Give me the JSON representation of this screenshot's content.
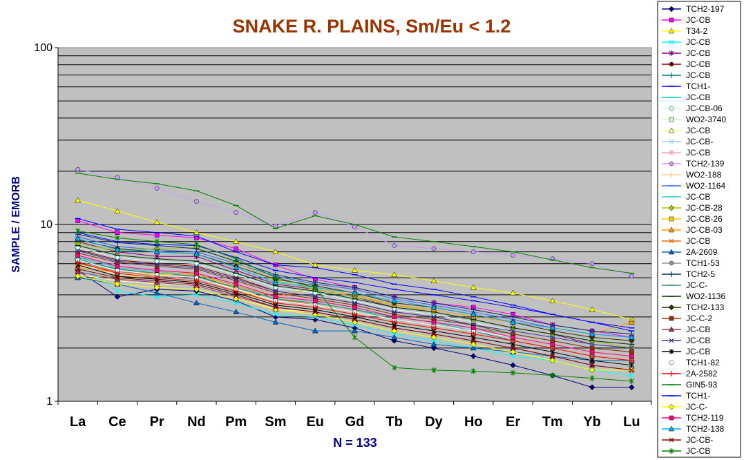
{
  "chart_data": {
    "type": "line",
    "title": "SNAKE R. PLAINS, Sm/Eu < 1.2",
    "ylabel": "SAMPLE / EMORB",
    "xlabel": "N = 133",
    "y_scale": "log",
    "ylim": [
      1,
      100
    ],
    "y_ticks": [
      "1",
      "10",
      "100"
    ],
    "grid": true,
    "legend_position": "right",
    "plot_background": "#c0c0c0",
    "categories": [
      "La",
      "Ce",
      "Pr",
      "Nd",
      "Pm",
      "Sm",
      "Eu",
      "Gd",
      "Tb",
      "Dy",
      "Ho",
      "Er",
      "Tm",
      "Yb",
      "Lu"
    ],
    "series": [
      {
        "name": "TCH2-197",
        "color": "#000080",
        "marker": "diamond",
        "values": [
          5.5,
          3.9,
          4.3,
          4.2,
          3.7,
          3.0,
          2.9,
          2.6,
          2.2,
          2.0,
          1.8,
          1.6,
          1.4,
          1.2,
          1.2
        ]
      },
      {
        "name": "JC-CB",
        "color": "#ff00ff",
        "marker": "square",
        "values": [
          10.5,
          9.0,
          8.7,
          8.4,
          7.3,
          5.9,
          4.9,
          4.4,
          3.9,
          3.6,
          3.4,
          3.1,
          2.7,
          2.5,
          2.3
        ]
      },
      {
        "name": "T34-2",
        "color": "#ffff00",
        "marker": "triangle",
        "values": [
          13.7,
          11.9,
          10.3,
          9.0,
          8.0,
          7.0,
          5.9,
          5.5,
          5.2,
          4.8,
          4.4,
          4.1,
          3.7,
          3.3,
          2.9
        ]
      },
      {
        "name": "JC-CB",
        "color": "#00ffff",
        "marker": "x",
        "values": [
          6.0,
          4.2,
          3.9,
          4.0,
          3.6,
          3.1,
          3.0,
          2.7,
          2.4,
          2.2,
          2.0,
          1.8,
          1.7,
          1.5,
          1.4
        ]
      },
      {
        "name": "JC-CB",
        "color": "#800080",
        "marker": "star",
        "values": [
          8.0,
          7.0,
          6.6,
          6.6,
          5.5,
          4.6,
          4.3,
          3.9,
          3.4,
          3.2,
          2.9,
          2.6,
          2.4,
          2.1,
          2.0
        ]
      },
      {
        "name": "JC-CB",
        "color": "#800000",
        "marker": "circle",
        "values": [
          7.2,
          6.3,
          6.0,
          5.8,
          5.0,
          4.2,
          3.9,
          3.6,
          3.2,
          3.0,
          2.7,
          2.4,
          2.2,
          2.0,
          1.9
        ]
      },
      {
        "name": "JC-CB",
        "color": "#008080",
        "marker": "plus",
        "values": [
          6.3,
          5.6,
          5.3,
          5.1,
          4.4,
          3.8,
          3.6,
          3.3,
          2.9,
          2.7,
          2.5,
          2.2,
          2.0,
          1.8,
          1.7
        ]
      },
      {
        "name": "TCH1-",
        "color": "#0000ff",
        "marker": "dash",
        "values": [
          9.0,
          8.0,
          7.7,
          7.6,
          6.5,
          5.5,
          5.0,
          4.7,
          4.3,
          4.0,
          3.7,
          3.4,
          3.1,
          2.8,
          2.6
        ]
      },
      {
        "name": "JC-CB",
        "color": "#00cccc",
        "marker": "dash",
        "values": [
          6.5,
          5.8,
          5.5,
          5.3,
          4.6,
          3.9,
          3.7,
          3.4,
          3.0,
          2.8,
          2.5,
          2.3,
          2.1,
          1.9,
          1.8
        ]
      },
      {
        "name": "JC-CB-06",
        "color": "#ccffff",
        "marker": "diamond",
        "values": [
          7.4,
          6.5,
          6.2,
          6.0,
          5.2,
          4.4,
          4.1,
          3.7,
          3.3,
          3.1,
          2.8,
          2.5,
          2.3,
          2.1,
          2.0
        ]
      },
      {
        "name": "WO2-3740",
        "color": "#ccffcc",
        "marker": "square",
        "values": [
          6.0,
          5.2,
          5.0,
          4.8,
          4.2,
          3.6,
          3.4,
          3.1,
          2.8,
          2.6,
          2.4,
          2.2,
          2.0,
          1.8,
          1.7
        ]
      },
      {
        "name": "JC-CB",
        "color": "#ffff99",
        "marker": "triangle",
        "values": [
          5.2,
          4.8,
          4.6,
          4.5,
          3.9,
          3.3,
          3.2,
          2.9,
          2.6,
          2.4,
          2.2,
          2.0,
          1.8,
          1.7,
          1.6
        ]
      },
      {
        "name": "JC-CB-",
        "color": "#99ccff",
        "marker": "x",
        "values": [
          7.0,
          6.0,
          5.7,
          5.5,
          4.8,
          4.1,
          3.8,
          3.5,
          3.1,
          2.9,
          2.6,
          2.4,
          2.2,
          2.0,
          1.9
        ]
      },
      {
        "name": "JC-CB",
        "color": "#ff99cc",
        "marker": "star",
        "values": [
          6.8,
          5.9,
          5.6,
          5.4,
          4.7,
          4.0,
          3.7,
          3.4,
          3.0,
          2.8,
          2.6,
          2.3,
          2.1,
          1.9,
          1.8
        ]
      },
      {
        "name": "TCH2-139",
        "color": "#cc99ff",
        "marker": "circle",
        "values": [
          20.5,
          18.5,
          16.0,
          13.5,
          11.7,
          9.8,
          11.7,
          9.7,
          7.6,
          7.3,
          7.0,
          6.7,
          6.4,
          6.0,
          5.1
        ]
      },
      {
        "name": "WO2-188",
        "color": "#ffcc99",
        "marker": "plus",
        "values": [
          5.8,
          5.3,
          5.1,
          4.9,
          4.3,
          3.7,
          3.5,
          3.2,
          2.9,
          2.7,
          2.5,
          2.3,
          2.1,
          1.9,
          1.8
        ]
      },
      {
        "name": "WO2-1164",
        "color": "#3366ff",
        "marker": "dash",
        "values": [
          8.5,
          7.5,
          7.2,
          7.0,
          6.0,
          5.1,
          4.6,
          4.3,
          3.8,
          3.5,
          3.2,
          2.9,
          2.6,
          2.4,
          2.3
        ]
      },
      {
        "name": "JC-CB",
        "color": "#33cccc",
        "marker": "dash",
        "values": [
          6.6,
          5.7,
          5.4,
          5.2,
          4.5,
          3.8,
          3.6,
          3.3,
          2.9,
          2.7,
          2.5,
          2.3,
          2.1,
          1.9,
          1.8
        ]
      },
      {
        "name": "JC-CB-28",
        "color": "#99cc00",
        "marker": "diamond",
        "values": [
          7.8,
          7.1,
          7.3,
          7.4,
          6.1,
          4.8,
          4.3,
          3.9,
          3.5,
          3.2,
          2.9,
          2.6,
          2.4,
          2.2,
          2.0
        ]
      },
      {
        "name": "JC-CB-26",
        "color": "#ffcc00",
        "marker": "square",
        "values": [
          5.6,
          5.0,
          5.2,
          5.3,
          4.3,
          3.6,
          3.4,
          3.1,
          2.8,
          2.6,
          2.4,
          2.2,
          2.0,
          1.8,
          1.7
        ]
      },
      {
        "name": "JC-CB-03",
        "color": "#ff9900",
        "marker": "triangle",
        "values": [
          5.7,
          5.4,
          5.3,
          5.2,
          4.5,
          3.9,
          4.4,
          4.0,
          3.5,
          3.3,
          3.0,
          2.8,
          2.6,
          2.4,
          2.8
        ]
      },
      {
        "name": "JC-CB",
        "color": "#ff6600",
        "marker": "x",
        "values": [
          6.0,
          5.4,
          5.2,
          5.0,
          4.4,
          3.8,
          3.5,
          3.2,
          2.9,
          2.7,
          2.5,
          2.3,
          2.1,
          1.9,
          1.8
        ]
      },
      {
        "name": "2A-2609",
        "color": "#0066cc",
        "marker": "triangle",
        "values": [
          5.0,
          4.6,
          4.1,
          3.6,
          3.2,
          2.8,
          2.5,
          2.5,
          2.3,
          2.1,
          2.0,
          1.9,
          1.8,
          1.7,
          1.7
        ]
      },
      {
        "name": "TCH1-53",
        "color": "#969696",
        "marker": "circle",
        "values": [
          6.2,
          5.4,
          5.1,
          4.9,
          4.2,
          3.6,
          3.4,
          3.1,
          2.8,
          2.6,
          2.4,
          2.2,
          2.0,
          1.8,
          1.7
        ]
      },
      {
        "name": "TCH2-5",
        "color": "#003366",
        "marker": "plus",
        "values": [
          8.8,
          7.9,
          7.6,
          7.3,
          6.2,
          5.2,
          4.7,
          4.4,
          3.9,
          3.6,
          3.3,
          3.0,
          2.7,
          2.5,
          2.4
        ]
      },
      {
        "name": "JC-C-",
        "color": "#339966",
        "marker": "dash",
        "values": [
          6.4,
          5.5,
          5.2,
          5.0,
          4.4,
          3.8,
          3.6,
          3.3,
          3.0,
          2.8,
          2.6,
          2.4,
          2.2,
          2.0,
          1.9
        ]
      },
      {
        "name": "WO2-1136",
        "color": "#003300",
        "marker": "dash",
        "values": [
          7.6,
          6.7,
          6.4,
          6.2,
          5.3,
          4.5,
          4.2,
          3.8,
          3.4,
          3.2,
          2.9,
          2.6,
          2.4,
          2.2,
          2.1
        ]
      },
      {
        "name": "TCH2-133",
        "color": "#333300",
        "marker": "diamond",
        "values": [
          8.2,
          7.3,
          7.0,
          6.8,
          5.8,
          4.9,
          4.5,
          4.1,
          3.6,
          3.4,
          3.1,
          2.8,
          2.5,
          2.3,
          2.2
        ]
      },
      {
        "name": "JC-C-2",
        "color": "#993300",
        "marker": "square",
        "values": [
          6.9,
          6.1,
          5.8,
          5.6,
          4.8,
          4.1,
          3.8,
          3.5,
          3.1,
          2.9,
          2.7,
          2.4,
          2.2,
          2.0,
          1.9
        ]
      },
      {
        "name": "JC-CB",
        "color": "#993366",
        "marker": "triangle",
        "values": [
          5.4,
          4.9,
          4.7,
          4.5,
          3.9,
          3.4,
          3.2,
          2.9,
          2.6,
          2.4,
          2.2,
          2.0,
          1.8,
          1.6,
          1.5
        ]
      },
      {
        "name": "JC-CB",
        "color": "#333399",
        "marker": "x",
        "values": [
          7.1,
          6.2,
          5.9,
          5.7,
          4.9,
          4.2,
          3.9,
          3.6,
          3.2,
          3.0,
          2.7,
          2.5,
          2.3,
          2.1,
          2.0
        ]
      },
      {
        "name": "JC-CB",
        "color": "#000000",
        "marker": "star",
        "values": [
          5.9,
          5.1,
          4.9,
          4.7,
          4.1,
          3.5,
          3.3,
          3.0,
          2.7,
          2.5,
          2.3,
          2.1,
          1.9,
          1.7,
          1.6
        ]
      },
      {
        "name": "TCH1-82",
        "color": "#ffffff",
        "marker": "circle",
        "values": [
          6.3,
          5.5,
          5.2,
          5.0,
          4.3,
          3.7,
          3.5,
          3.2,
          2.9,
          2.7,
          2.5,
          2.3,
          2.1,
          1.9,
          1.8
        ]
      },
      {
        "name": "2A-2582",
        "color": "#ff0000",
        "marker": "plus",
        "values": [
          6.1,
          5.3,
          5.0,
          4.8,
          4.2,
          3.6,
          3.4,
          3.1,
          2.8,
          2.6,
          2.4,
          2.2,
          2.0,
          1.8,
          1.7
        ]
      },
      {
        "name": "GIN5-93",
        "color": "#008000",
        "marker": "dash",
        "values": [
          19.5,
          18.0,
          17.0,
          15.5,
          12.8,
          9.5,
          11.2,
          10.0,
          8.5,
          8.0,
          7.5,
          7.0,
          6.3,
          5.7,
          5.3
        ]
      },
      {
        "name": "TCH1-",
        "color": "#0000ff",
        "marker": "dash",
        "values": [
          10.8,
          9.4,
          9.0,
          8.6,
          7.0,
          5.9,
          5.7,
          5.2,
          4.6,
          4.3,
          3.9,
          3.5,
          3.1,
          2.8,
          2.5
        ]
      },
      {
        "name": "JC-C-",
        "color": "#ffff00",
        "marker": "diamond",
        "values": [
          5.1,
          4.6,
          4.4,
          4.3,
          3.8,
          3.3,
          3.1,
          2.8,
          2.5,
          2.3,
          2.1,
          1.9,
          1.7,
          1.5,
          1.5
        ]
      },
      {
        "name": "TCH2-119",
        "color": "#ff0080",
        "marker": "square",
        "values": [
          6.7,
          5.8,
          5.5,
          5.3,
          4.6,
          3.9,
          3.7,
          3.4,
          3.0,
          2.8,
          2.6,
          2.3,
          2.1,
          1.9,
          1.8
        ]
      },
      {
        "name": "TCH2-138",
        "color": "#00b0f0",
        "marker": "triangle",
        "values": [
          8.3,
          7.2,
          7.0,
          6.8,
          5.7,
          4.7,
          4.4,
          4.1,
          3.7,
          3.4,
          3.1,
          2.8,
          2.6,
          2.4,
          2.3
        ]
      },
      {
        "name": "JC-CB-",
        "color": "#800000",
        "marker": "x",
        "values": [
          5.6,
          5.0,
          4.8,
          4.6,
          4.0,
          3.4,
          3.2,
          2.9,
          2.6,
          2.4,
          2.2,
          2.0,
          1.8,
          1.6,
          1.5
        ]
      },
      {
        "name": "JC-CB",
        "color": "#008000",
        "marker": "star",
        "values": [
          9.2,
          8.4,
          8.0,
          7.7,
          6.4,
          5.0,
          4.4,
          2.3,
          1.55,
          1.5,
          1.48,
          1.45,
          1.4,
          1.35,
          1.3
        ]
      }
    ]
  }
}
